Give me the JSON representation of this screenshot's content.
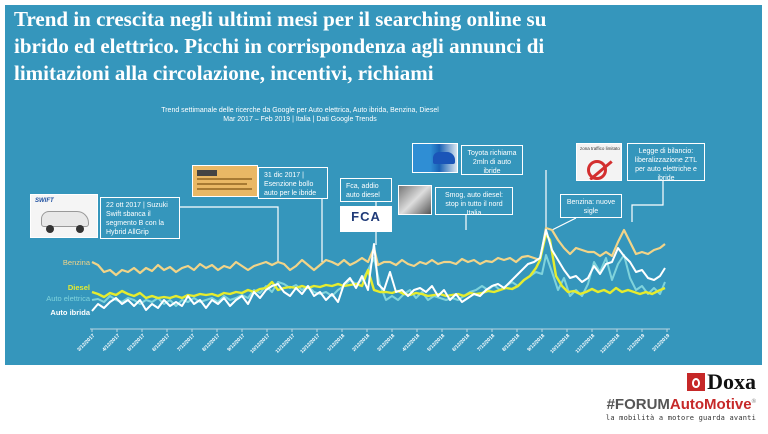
{
  "headline": {
    "line1": "Trend in crescita negli ultimi mesi per il searching online su",
    "line2": "ibrido ed elettrico. Picchi in corrispondenza agli annunci di",
    "line3": "limitazioni alla circolazione, incentivi, richiami"
  },
  "subtitle": {
    "line1": "Trend settimanale delle ricerche da Google per Auto elettrica, Auto ibrida, Benzina, Diesel",
    "line2": "Mar 2017 – Feb 2019 | Italia | Dati Google Trends"
  },
  "annotations": [
    {
      "id": "suzuki",
      "text": "22 ott 2017 | Suzuki Swift sbanca il segmento B con la Hybrid AllGrip",
      "thumb": "SWIFT"
    },
    {
      "id": "bollo",
      "text": "31 dic 2017 | Esenzione bollo auto per le ibride"
    },
    {
      "id": "fca",
      "text": "Fca, addio auto diesel",
      "thumb": "FCA"
    },
    {
      "id": "smog",
      "text": "Smog, auto diesel: stop in tutto il nord Italia"
    },
    {
      "id": "toyota",
      "text": "Toyota richiama 2mln di auto ibride"
    },
    {
      "id": "benzina",
      "text": "Benzina: nuove sigle"
    },
    {
      "id": "bilancio",
      "text": "Legge di bilancio: liberalizzazione ZTL per auto elettriche e ibride",
      "thumb": "zona traffico limitato"
    }
  ],
  "legend": {
    "benzina": "Benzina",
    "diesel": "Diesel",
    "elettrica": "Auto elettrica",
    "ibrida": "Auto ibrida"
  },
  "colors": {
    "panel": "#3596bc",
    "benzina": "#f2d488",
    "diesel": "#e6ec2e",
    "elettrica": "#7fd3dc",
    "ibrida": "#ffffff",
    "brand_red": "#c62828"
  },
  "xticks": [
    "3/12/2017",
    "4/12/2017",
    "5/12/2017",
    "6/12/2017",
    "7/12/2017",
    "8/12/2017",
    "9/12/2017",
    "10/12/2017",
    "11/12/2017",
    "12/12/2017",
    "1/12/2018",
    "2/12/2018",
    "3/12/2018",
    "4/12/2018",
    "5/12/2018",
    "6/12/2018",
    "7/12/2018",
    "8/12/2018",
    "9/12/2018",
    "10/12/2018",
    "11/12/2018",
    "12/12/2018",
    "1/12/2019",
    "2/12/2019"
  ],
  "branding": {
    "doxa": "Doxa",
    "forum_hash": "#FORUM",
    "forum_auto": "AutoMotive",
    "forum_reg": "®",
    "tagline": "la mobilità a motore guarda avanti"
  },
  "chart_data": {
    "type": "line",
    "title": "Trend settimanale delle ricerche da Google per Auto elettrica, Auto ibrida, Benzina, Diesel",
    "subtitle": "Mar 2017 – Feb 2019 | Italia | Dati Google Trends",
    "xlabel": "",
    "ylabel": "",
    "x": [
      "3/12/2017",
      "4/12/2017",
      "5/12/2017",
      "6/12/2017",
      "7/12/2017",
      "8/12/2017",
      "9/12/2017",
      "10/12/2017",
      "11/12/2017",
      "12/12/2017",
      "1/12/2018",
      "2/12/2018",
      "3/12/2018",
      "4/12/2018",
      "5/12/2018",
      "6/12/2018",
      "7/12/2018",
      "8/12/2018",
      "9/12/2018",
      "10/12/2018",
      "11/12/2018",
      "12/12/2018",
      "1/12/2019",
      "2/12/2019"
    ],
    "series": [
      {
        "name": "Benzina",
        "values": [
          62,
          56,
          55,
          57,
          58,
          55,
          60,
          58,
          62,
          64,
          60,
          72,
          58,
          57,
          58,
          57,
          58,
          60,
          62,
          96,
          72,
          70,
          66,
          68
        ]
      },
      {
        "name": "Diesel",
        "values": [
          38,
          40,
          34,
          35,
          36,
          38,
          40,
          44,
          46,
          46,
          48,
          52,
          40,
          36,
          35,
          35,
          35,
          38,
          40,
          94,
          40,
          40,
          38,
          38
        ]
      },
      {
        "name": "Auto elettrica",
        "values": [
          35,
          34,
          30,
          32,
          30,
          32,
          36,
          42,
          48,
          46,
          50,
          60,
          44,
          38,
          36,
          36,
          35,
          38,
          44,
          70,
          46,
          70,
          54,
          50
        ]
      },
      {
        "name": "Auto ibrida",
        "values": [
          24,
          30,
          26,
          24,
          26,
          28,
          34,
          40,
          50,
          56,
          52,
          66,
          42,
          38,
          34,
          32,
          30,
          36,
          50,
          92,
          50,
          64,
          58,
          54
        ]
      }
    ],
    "ylim": [
      0,
      100
    ],
    "grid": false,
    "legend_position": "left-inline",
    "annotations": [
      "22 ott 2017 | Suzuki Swift sbanca il segmento B con la Hybrid AllGrip",
      "31 dic 2017 | Esenzione bollo auto per le ibride",
      "Fca, addio auto diesel",
      "Smog, auto diesel: stop in tutto il nord Italia",
      "Toyota richiama 2mln di auto ibride",
      "Benzina: nuove sigle",
      "Legge di bilancio: liberalizzazione ZTL per auto elettriche e ibride"
    ]
  }
}
